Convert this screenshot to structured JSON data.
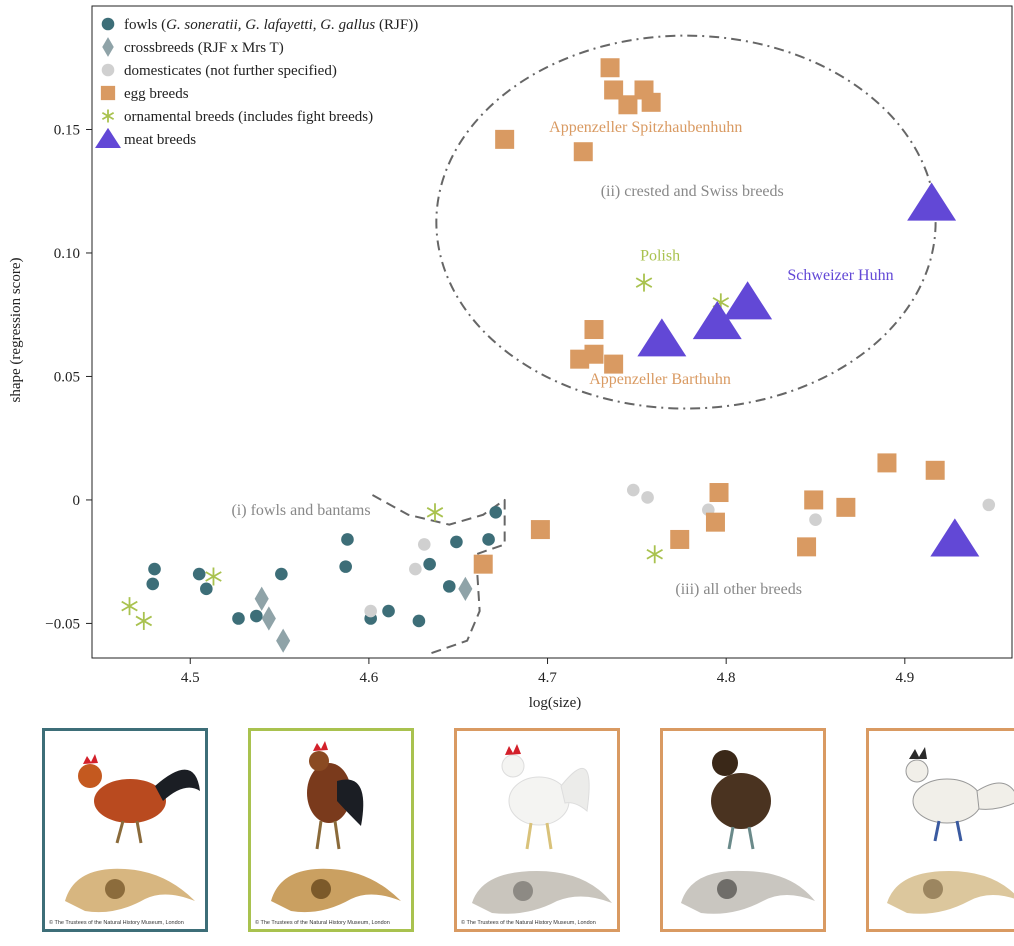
{
  "chart_data": {
    "type": "scatter",
    "xlabel": "log(size)",
    "ylabel": "shape (regression score)",
    "xlim": [
      4.445,
      4.96
    ],
    "ylim": [
      -0.064,
      0.2
    ],
    "x_ticks": [
      {
        "value": 4.5,
        "label": "4.5"
      },
      {
        "value": 4.6,
        "label": "4.6"
      },
      {
        "value": 4.7,
        "label": "4.7"
      },
      {
        "value": 4.8,
        "label": "4.8"
      },
      {
        "value": 4.9,
        "label": "4.9"
      }
    ],
    "y_ticks": [
      {
        "value": -0.05,
        "label": "−0.05"
      },
      {
        "value": 0,
        "label": "0"
      },
      {
        "value": 0.05,
        "label": "0.05"
      },
      {
        "value": 0.1,
        "label": "0.10"
      },
      {
        "value": 0.15,
        "label": "0.15"
      }
    ],
    "legend_placement": "top-left",
    "grid": false,
    "series": [
      {
        "key": "fowls",
        "name_parts": [
          "fowls (",
          "G. soneratii",
          ", ",
          "G. lafayetti",
          ", ",
          "G. gallus",
          " (RJF))"
        ],
        "marker": "circle",
        "color": "#3d6e78",
        "points": [
          [
            4.48,
            -0.028
          ],
          [
            4.479,
            -0.034
          ],
          [
            4.505,
            -0.03
          ],
          [
            4.509,
            -0.036
          ],
          [
            4.527,
            -0.048
          ],
          [
            4.537,
            -0.047
          ],
          [
            4.551,
            -0.03
          ],
          [
            4.588,
            -0.016
          ],
          [
            4.587,
            -0.027
          ],
          [
            4.601,
            -0.048
          ],
          [
            4.611,
            -0.045
          ],
          [
            4.628,
            -0.049
          ],
          [
            4.634,
            -0.026
          ],
          [
            4.645,
            -0.035
          ],
          [
            4.649,
            -0.017
          ],
          [
            4.667,
            -0.016
          ],
          [
            4.671,
            -0.005
          ]
        ]
      },
      {
        "key": "crossbreeds",
        "name": "crossbreeds (RJF x Mrs T)",
        "marker": "diamond",
        "color": "#8fa3a8",
        "points": [
          [
            4.54,
            -0.04
          ],
          [
            4.544,
            -0.048
          ],
          [
            4.552,
            -0.057
          ],
          [
            4.654,
            -0.036
          ]
        ]
      },
      {
        "key": "domesticates",
        "name": "domesticates (not further specified)",
        "marker": "circle",
        "color": "#d0d0d0",
        "points": [
          [
            4.601,
            -0.045
          ],
          [
            4.626,
            -0.028
          ],
          [
            4.631,
            -0.018
          ],
          [
            4.748,
            0.004
          ],
          [
            4.756,
            0.001
          ],
          [
            4.79,
            -0.004
          ],
          [
            4.85,
            -0.008
          ],
          [
            4.947,
            -0.002
          ]
        ]
      },
      {
        "key": "egg",
        "name": "egg breeds",
        "marker": "square",
        "color": "#d99a62",
        "points": [
          [
            4.676,
            0.146
          ],
          [
            4.735,
            0.175
          ],
          [
            4.737,
            0.166
          ],
          [
            4.745,
            0.16
          ],
          [
            4.754,
            0.166
          ],
          [
            4.758,
            0.161
          ],
          [
            4.72,
            0.141
          ],
          [
            4.726,
            0.069
          ],
          [
            4.726,
            0.059
          ],
          [
            4.718,
            0.057
          ],
          [
            4.737,
            0.055
          ],
          [
            4.664,
            -0.026
          ],
          [
            4.696,
            -0.012
          ],
          [
            4.774,
            -0.016
          ],
          [
            4.794,
            -0.009
          ],
          [
            4.796,
            0.003
          ],
          [
            4.845,
            -0.019
          ],
          [
            4.849,
            -0.0
          ],
          [
            4.867,
            -0.003
          ],
          [
            4.89,
            0.015
          ],
          [
            4.917,
            0.012
          ]
        ]
      },
      {
        "key": "ornamental",
        "name": "ornamental breeds (includes fight breeds)",
        "marker": "asterisk",
        "color": "#a9c24f",
        "points": [
          [
            4.466,
            -0.043
          ],
          [
            4.474,
            -0.049
          ],
          [
            4.513,
            -0.031
          ],
          [
            4.637,
            -0.005
          ],
          [
            4.754,
            0.088
          ],
          [
            4.797,
            0.08
          ],
          [
            4.76,
            -0.022
          ]
        ]
      },
      {
        "key": "meat",
        "name": "meat breeds",
        "marker": "triangle",
        "color": "#6248d6",
        "points": [
          [
            4.764,
            0.065
          ],
          [
            4.795,
            0.072
          ],
          [
            4.812,
            0.08
          ],
          [
            4.915,
            0.12
          ],
          [
            4.928,
            -0.016
          ]
        ]
      }
    ],
    "annotations": [
      {
        "text": "Appenzeller Spitzhaubenhuhn",
        "color": "#d99a62",
        "x": 4.755,
        "y": 0.149
      },
      {
        "text": "(ii) crested and Swiss breeds",
        "color": "#888888",
        "x": 4.781,
        "y": 0.123
      },
      {
        "text": "Polish",
        "color": "#a9c24f",
        "x": 4.763,
        "y": 0.097
      },
      {
        "text": "Schweizer Huhn",
        "color": "#6248d6",
        "x": 4.864,
        "y": 0.089
      },
      {
        "text": "Appenzeller Barthuhn",
        "color": "#d99a62",
        "x": 4.763,
        "y": 0.047
      },
      {
        "text": "(i) fowls and bantams",
        "color": "#888888",
        "x": 4.562,
        "y": -0.006
      },
      {
        "text": "(iii) all other breeds",
        "color": "#888888",
        "x": 4.807,
        "y": -0.038
      }
    ],
    "group_outlines": [
      {
        "name": "crested-swiss",
        "points": [
          [
            4.64,
            0.12
          ],
          [
            4.66,
            0.164
          ],
          [
            4.72,
            0.188
          ],
          [
            4.84,
            0.178
          ],
          [
            4.915,
            0.13
          ],
          [
            4.9,
            0.06
          ],
          [
            4.8,
            0.037
          ],
          [
            4.73,
            0.042
          ],
          [
            4.662,
            0.068
          ],
          [
            4.64,
            0.12
          ]
        ]
      },
      {
        "name": "fowls-bantams",
        "points": [
          [
            4.602,
            0.002
          ],
          [
            4.622,
            -0.006
          ],
          [
            4.645,
            -0.01
          ],
          [
            4.664,
            -0.006
          ],
          [
            4.676,
            0.0
          ],
          [
            4.676,
            -0.018
          ],
          [
            4.66,
            -0.022
          ],
          [
            4.662,
            -0.045
          ],
          [
            4.655,
            -0.057
          ],
          [
            4.635,
            -0.062
          ]
        ]
      }
    ]
  },
  "panels": [
    {
      "copyright": "© The Trustees of the Natural History Museum, London",
      "border": "#3d6e78"
    },
    {
      "copyright": "© The Trustees of the Natural History Museum, London",
      "border": "#a9c24f"
    },
    {
      "copyright": "© The Trustees of the Natural History Museum, London",
      "border": "#d99a62"
    },
    {
      "copyright": "",
      "border": "#d99a62"
    },
    {
      "copyright": "",
      "border": "#d99a62"
    }
  ]
}
